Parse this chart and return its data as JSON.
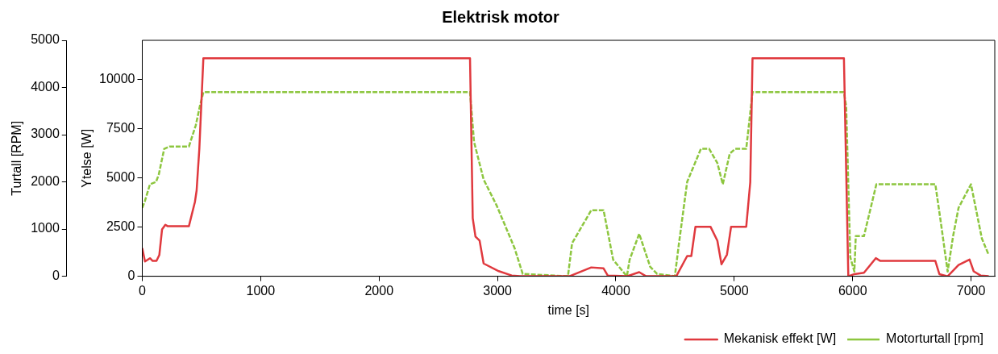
{
  "chart_data": {
    "type": "line",
    "title": "Elektrisk motor",
    "xlabel": "time [s]",
    "ylabel": "Turtall [RPM]",
    "y2label": "Ytelse [W]",
    "xlim": [
      0,
      7200
    ],
    "xticks": [
      0,
      1000,
      2000,
      3000,
      4000,
      5000,
      6000,
      7000
    ],
    "ylim": [
      0,
      5000
    ],
    "yticks": [
      0,
      1000,
      2000,
      3000,
      4000,
      5000
    ],
    "y2lim": [
      0,
      12000
    ],
    "y2ticks": [
      0,
      2500,
      5000,
      7500,
      10000
    ],
    "grid": false,
    "legend": "bottom right",
    "marker": "none",
    "series": [
      {
        "name": "Mekanisk effekt [W]",
        "color": "#e0393e",
        "axis": "y2",
        "line_style": "solid",
        "x": [
          0,
          23,
          65,
          88,
          120,
          144,
          167,
          195,
          213,
          394,
          445,
          459,
          482,
          516,
          2768,
          2791,
          2814,
          2849,
          2883,
          3011,
          3120,
          3190,
          3607,
          3792,
          3896,
          3931,
          4093,
          4197,
          4255,
          4510,
          4602,
          4637,
          4672,
          4799,
          4857,
          4892,
          4938,
          4973,
          5101,
          5135,
          5154,
          5926,
          5963,
          6014,
          6095,
          6195,
          6234,
          6698,
          6732,
          6802,
          6894,
          6987,
          7022,
          7080,
          7149
        ],
        "values": [
          1430,
          750,
          920,
          780,
          780,
          1080,
          2380,
          2620,
          2550,
          2550,
          3790,
          4360,
          6490,
          11090,
          11090,
          2950,
          2020,
          1810,
          650,
          260,
          40,
          0,
          0,
          450,
          400,
          40,
          0,
          210,
          0,
          0,
          1030,
          1030,
          2520,
          2520,
          1810,
          610,
          1100,
          2520,
          2520,
          4790,
          11090,
          11090,
          0,
          110,
          180,
          920,
          780,
          780,
          110,
          0,
          570,
          850,
          250,
          40,
          0
        ]
      },
      {
        "name": "Motorturtall [rpm]",
        "color": "#8dc63f",
        "axis": "y",
        "line_style": "dashed",
        "x": [
          0,
          23,
          65,
          116,
          139,
          185,
          232,
          394,
          452,
          486,
          516,
          2768,
          2802,
          2883,
          2993,
          3144,
          3213,
          3595,
          3630,
          3792,
          3896,
          3977,
          4093,
          4116,
          4197,
          4290,
          4348,
          4498,
          4533,
          4602,
          4718,
          4788,
          4857,
          4903,
          4962,
          5008,
          5101,
          5154,
          5926,
          5945,
          5980,
          6014,
          6026,
          6095,
          6200,
          6698,
          6744,
          6802,
          6848,
          6894,
          6999,
          7091,
          7149
        ],
        "values": [
          1450,
          1600,
          1950,
          2000,
          2150,
          2700,
          2750,
          2750,
          3200,
          3600,
          3900,
          3900,
          2850,
          2050,
          1500,
          600,
          50,
          0,
          700,
          1400,
          1400,
          350,
          0,
          350,
          900,
          200,
          50,
          0,
          700,
          2000,
          2700,
          2700,
          2400,
          1950,
          2600,
          2700,
          2700,
          3900,
          3900,
          3600,
          400,
          100,
          850,
          850,
          1950,
          1950,
          1150,
          100,
          850,
          1450,
          1950,
          800,
          450
        ]
      }
    ]
  }
}
